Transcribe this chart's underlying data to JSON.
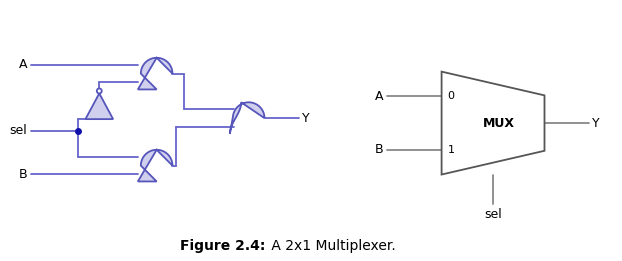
{
  "fig_width": 6.22,
  "fig_height": 2.61,
  "dpi": 100,
  "bg_color": "#ffffff",
  "gate_fill": "#d0d0ee",
  "gate_edge": "#5555bb",
  "wire_color": "#6666cc",
  "dot_color": "#1111aa",
  "text_color": "#000000",
  "mux_edge": "#555555",
  "mux_fill": "#ffffff",
  "wire_gray": "#888888",
  "caption_bold": "Figure 2.4:",
  "caption_normal": " A 2x1 Multiplexer.",
  "label_A": "A",
  "label_B": "B",
  "label_sel": "sel",
  "label_Y": "Y",
  "mux_label": "MUX",
  "mux_0": "0",
  "mux_1": "1",
  "lw": 1.3,
  "lw_mux": 1.3
}
